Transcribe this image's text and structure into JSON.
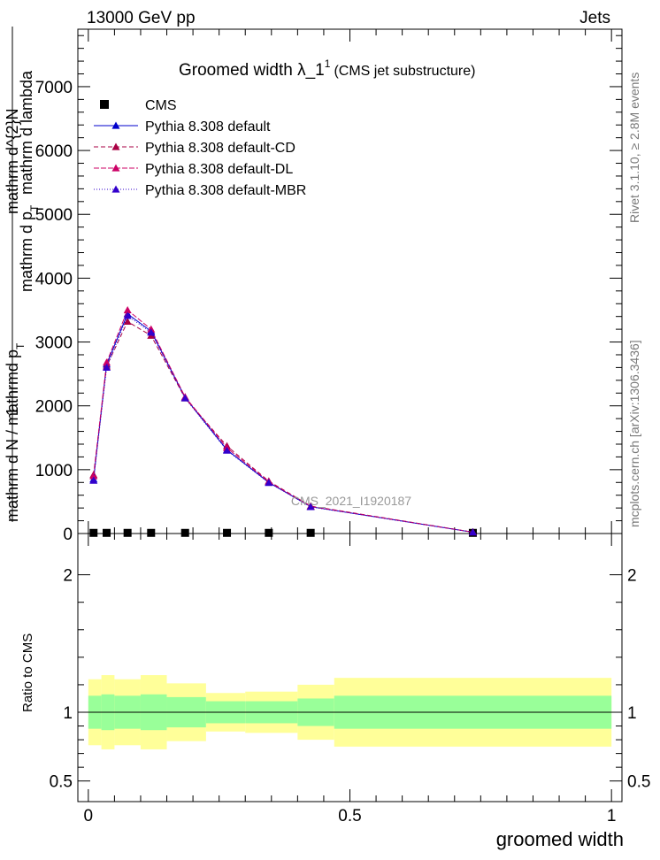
{
  "header": {
    "left": "13000 GeV pp",
    "right": "Jets"
  },
  "side_labels": {
    "rivet": "Rivet 3.1.10, ≥ 2.8M events",
    "mcplots": "mcplots.cern.ch [arXiv:1306.3436]"
  },
  "watermark": "CMS_2021_I1920187",
  "chart_data": [
    {
      "type": "line",
      "title": "Groomed width  λ_1",
      "title_sup": "1",
      "subtitle": "(CMS jet substructure)",
      "xlabel": "groomed width",
      "ylabel_num": "1",
      "ylabel_main": "mathrm d N / mathrmd p",
      "ylabel_main_sub": "T",
      "ylabel_rest": "mathrm d^{2}N",
      "ylabel_rest2": "mathrm d p",
      "ylabel_rest2_sub": "T",
      "ylabel_rest3": "mathrm d lambda",
      "xlim": [
        -0.02,
        1.02
      ],
      "ylim": [
        0,
        7900
      ],
      "x_ticks": [
        0,
        0.5,
        1
      ],
      "x_tick_labels": [
        "0",
        "0.5",
        "1"
      ],
      "y_ticks": [
        0,
        1000,
        2000,
        3000,
        4000,
        5000,
        6000,
        7000
      ],
      "y_tick_labels": [
        "0",
        "1000",
        "2000",
        "3000",
        "4000",
        "5000",
        "6000",
        "7000"
      ],
      "legend_position": "top-left",
      "x": [
        0.01,
        0.035,
        0.075,
        0.12,
        0.185,
        0.265,
        0.345,
        0.425,
        0.735
      ],
      "series": [
        {
          "name": "CMS",
          "color": "#000000",
          "marker": "square",
          "values": [
            10,
            10,
            10,
            10,
            10,
            10,
            10,
            10,
            10
          ]
        },
        {
          "name": "Pythia 8.308 default",
          "color": "#0000cc",
          "dash": "",
          "marker": "triangle",
          "values": [
            850,
            2650,
            3440,
            3170,
            2130,
            1310,
            800,
            420,
            20
          ]
        },
        {
          "name": "Pythia 8.308 default-CD",
          "color": "#aa0044",
          "dash": "5,3",
          "marker": "triangle",
          "values": [
            920,
            2620,
            3320,
            3100,
            2120,
            1370,
            820,
            430,
            22
          ]
        },
        {
          "name": "Pythia 8.308 default-DL",
          "color": "#cc0066",
          "dash": "6,2",
          "marker": "triangle",
          "values": [
            900,
            2680,
            3500,
            3200,
            2140,
            1340,
            810,
            425,
            21
          ]
        },
        {
          "name": "Pythia 8.308 default-MBR",
          "color": "#3300cc",
          "dash": "1,2",
          "marker": "triangle",
          "values": [
            830,
            2600,
            3410,
            3150,
            2120,
            1300,
            795,
            418,
            20
          ]
        }
      ]
    },
    {
      "type": "area",
      "ylabel": "Ratio to CMS",
      "xlim": [
        -0.02,
        1.02
      ],
      "ylim": [
        0.35,
        2.3
      ],
      "y_ticks": [
        0.5,
        1,
        2
      ],
      "y_tick_labels": [
        "0.5",
        "1",
        "2"
      ],
      "bins": [
        0,
        0.025,
        0.05,
        0.1,
        0.15,
        0.225,
        0.3,
        0.4,
        0.47,
        1.0
      ],
      "band_inner": [
        0.12,
        0.13,
        0.12,
        0.13,
        0.11,
        0.08,
        0.08,
        0.1,
        0.12
      ],
      "band_outer": [
        0.24,
        0.27,
        0.24,
        0.27,
        0.21,
        0.14,
        0.15,
        0.2,
        0.25
      ],
      "color_inner": "#99ff99",
      "color_outer": "#ffff99"
    }
  ]
}
